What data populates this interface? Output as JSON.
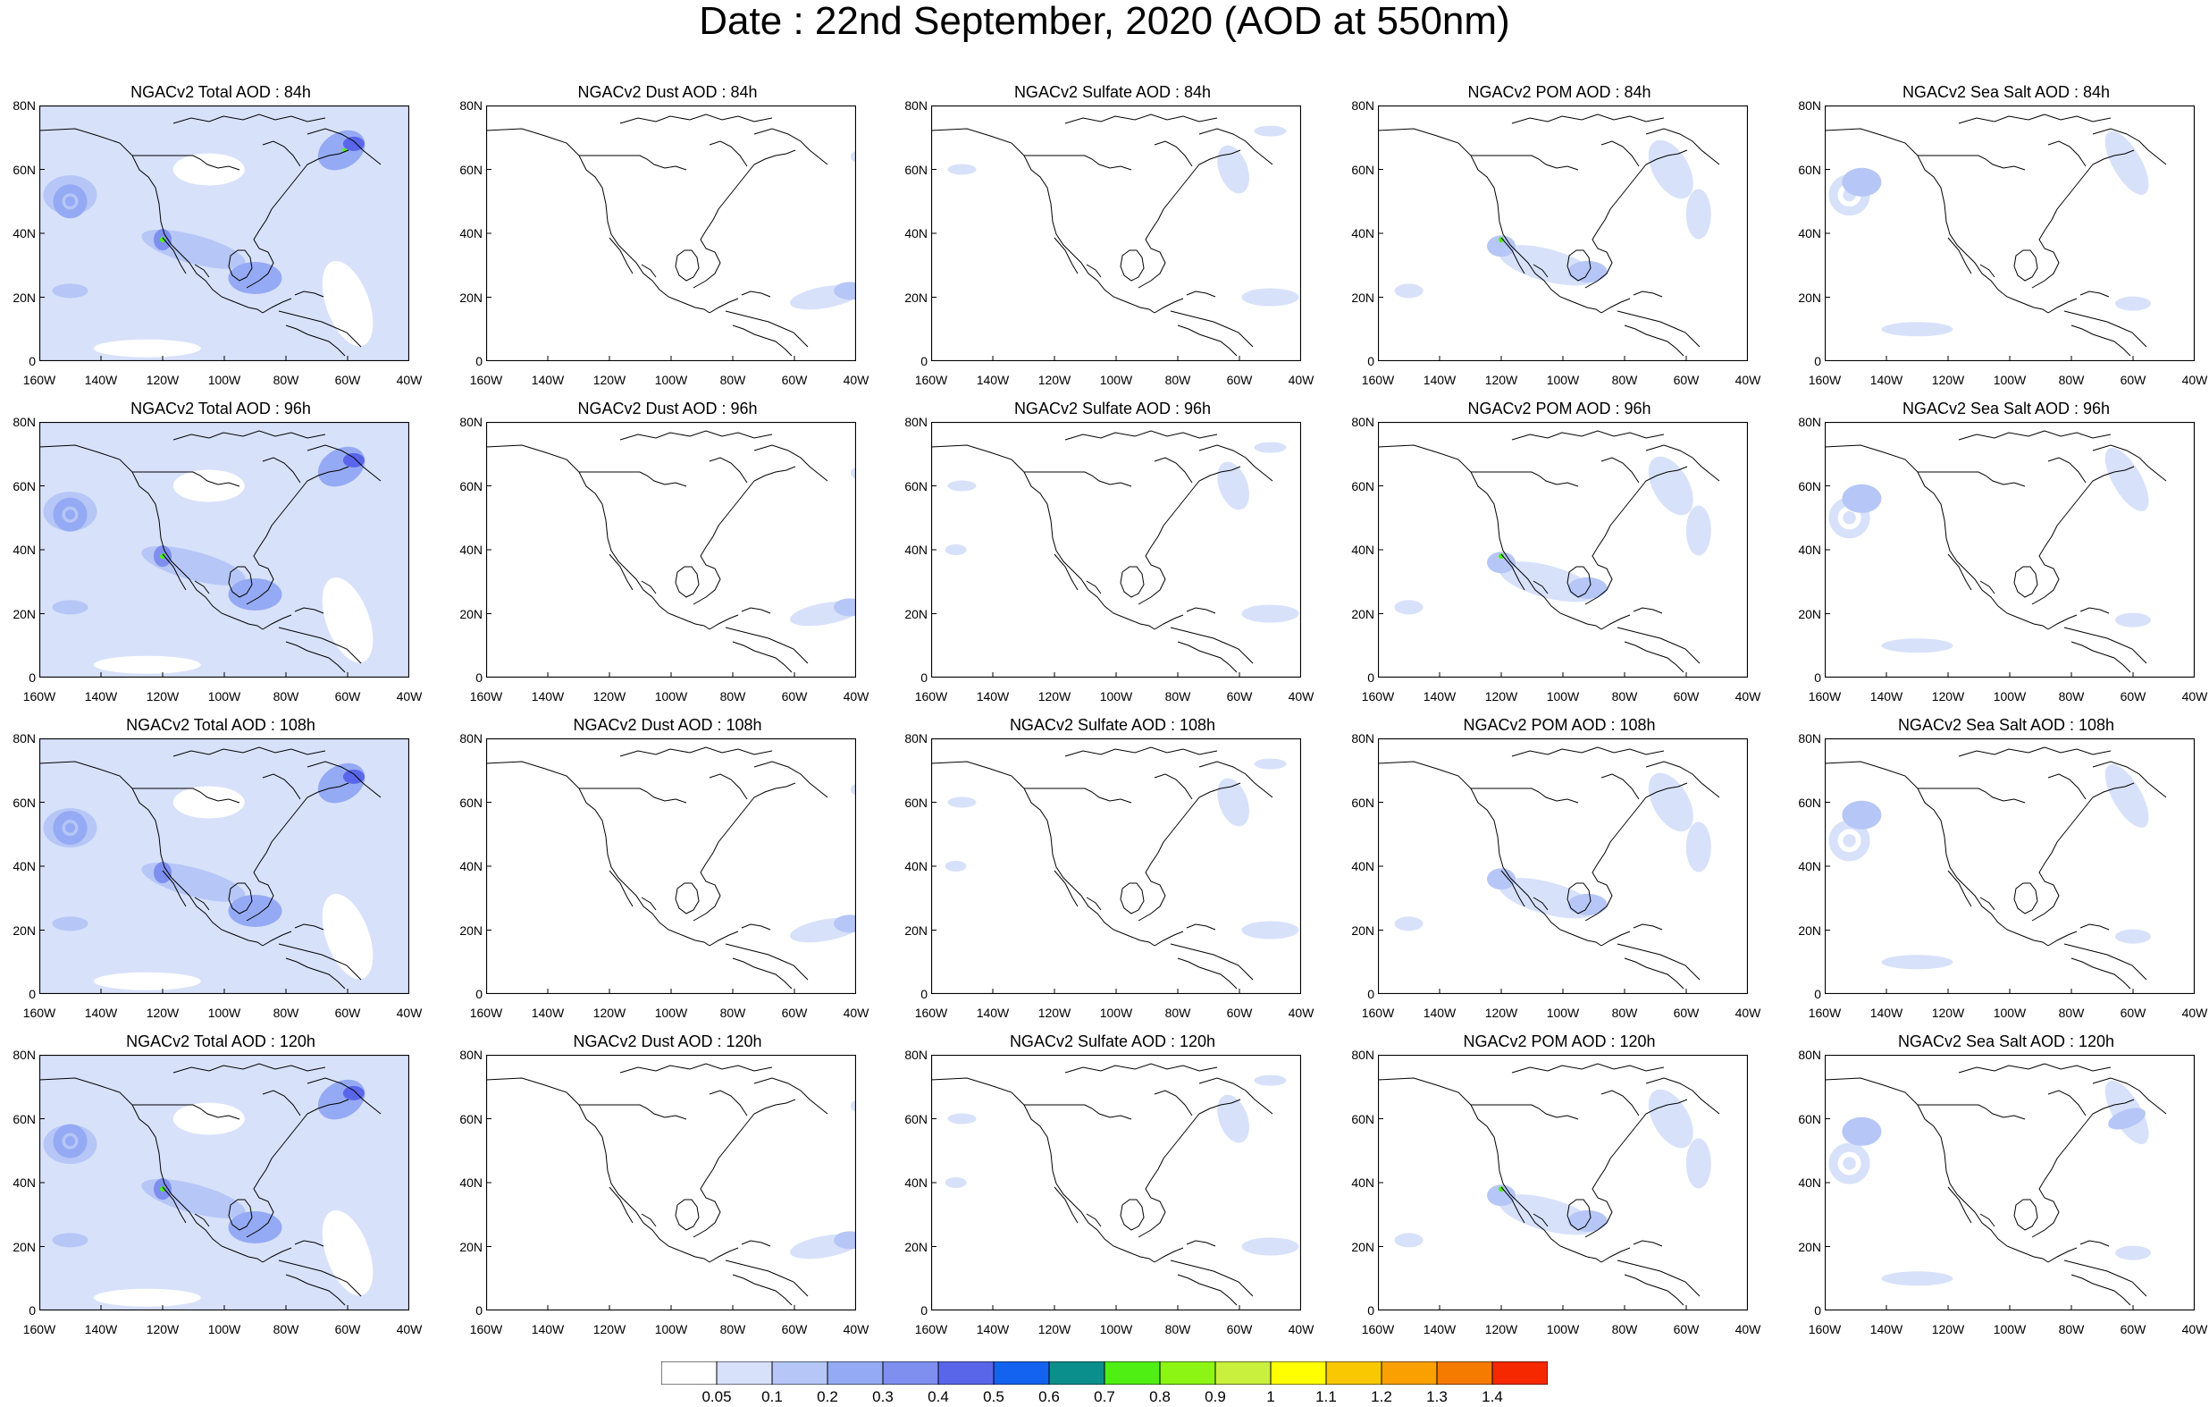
{
  "title": "Date : 22nd September, 2020 (AOD at 550nm)",
  "lat_labels": [
    "80N",
    "60N",
    "40N",
    "20N",
    "0"
  ],
  "lon_labels": [
    "160W",
    "140W",
    "120W",
    "100W",
    "80W",
    "60W",
    "40W"
  ],
  "panels": [
    [
      "NGACv2 Total AOD : 84h",
      "NGACv2 Dust AOD : 84h",
      "NGACv2 Sulfate AOD : 84h",
      "NGACv2 POM AOD : 84h",
      "NGACv2 Sea Salt AOD : 84h"
    ],
    [
      "NGACv2 Total AOD : 96h",
      "NGACv2 Dust AOD : 96h",
      "NGACv2 Sulfate AOD : 96h",
      "NGACv2 POM AOD : 96h",
      "NGACv2 Sea Salt AOD : 96h"
    ],
    [
      "NGACv2 Total AOD : 108h",
      "NGACv2 Dust AOD : 108h",
      "NGACv2 Sulfate AOD : 108h",
      "NGACv2 POM AOD : 108h",
      "NGACv2 Sea Salt AOD : 108h"
    ],
    [
      "NGACv2 Total AOD : 120h",
      "NGACv2 Dust AOD : 120h",
      "NGACv2 Sulfate AOD : 120h",
      "NGACv2 POM AOD : 120h",
      "NGACv2 Sea Salt  AOD : 120h"
    ]
  ],
  "colorbar": {
    "labels": [
      "0.05",
      "0.1",
      "0.2",
      "0.3",
      "0.4",
      "0.5",
      "0.6",
      "0.7",
      "0.8",
      "0.9",
      "1",
      "1.1",
      "1.2",
      "1.3",
      "1.4"
    ],
    "colors": [
      "#ffffff",
      "#d7e1fa",
      "#b6c6f6",
      "#95aaf4",
      "#7f8ff0",
      "#5a66ea",
      "#1463f0",
      "#0a8f8c",
      "#50ef14",
      "#8cf514",
      "#c8f03c",
      "#ffff00",
      "#fac800",
      "#faa000",
      "#f57a00",
      "#f52800"
    ]
  },
  "colors": {
    "light": "#d7e1fa",
    "medium": "#b6c6f6",
    "strong": "#95aaf4",
    "deep": "#7f8ff0",
    "intense": "#5a66ea",
    "green": "#50ef14",
    "coast": "#000000"
  }
}
